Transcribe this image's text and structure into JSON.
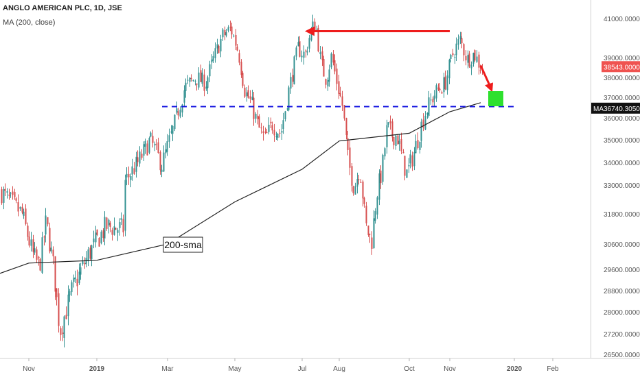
{
  "header": {
    "title": "ANGLO AMERICAN PLC, 1D, JSE",
    "indicator": "MA (200, close)"
  },
  "colors": {
    "up_candle": "#2f8f8f",
    "down_candle": "#d64b4b",
    "ma_line": "#222222",
    "support_line": "#1414e0",
    "arrow": "#ee1c1c",
    "target_box": "#2ee02e",
    "last_price_bg": "#ef5350",
    "ma_tag_bg": "#111111",
    "axis_text": "#555555"
  },
  "chart_data": {
    "type": "candlestick",
    "title": "ANGLO AMERICAN PLC, 1D, JSE",
    "ylim": [
      26300,
      41500
    ],
    "price_axis_ticks": [
      "41000.0000",
      "39000.0000",
      "38000.0000",
      "37000.0000",
      "36000.0000",
      "35000.0000",
      "34000.0000",
      "33000.0000",
      "31800.0000",
      "30600.0000",
      "29600.0000",
      "28800.0000",
      "28000.0000",
      "27200.0000",
      "26500.0000"
    ],
    "time_axis_labels": [
      "Nov",
      "2019",
      "Mar",
      "May",
      "Jul",
      "Aug",
      "Oct",
      "Nov",
      "2020",
      "Feb"
    ],
    "last_price": {
      "label": "38543.0000",
      "value": 38543
    },
    "ma_value": {
      "prefix": "MA",
      "label": "36740.3050",
      "value": 36740.3
    },
    "series": [
      {
        "name": "Price",
        "type": "candle",
        "close_path": [
          [
            "Oct",
            32700
          ],
          [
            "Oct",
            31800
          ],
          [
            "Nov",
            30200
          ],
          [
            "Nov",
            29700
          ],
          [
            "Nov",
            31500
          ],
          [
            "Nov",
            29800
          ],
          [
            "Nov",
            27300
          ],
          [
            "Dec",
            28800
          ],
          [
            "Dec",
            30200
          ],
          [
            "2019",
            31300
          ],
          [
            "2019",
            31200
          ],
          [
            "Jan",
            32500
          ],
          [
            "Feb",
            34000
          ],
          [
            "Feb",
            35000
          ],
          [
            "Feb",
            33900
          ],
          [
            "Mar",
            35500
          ],
          [
            "Mar",
            37500
          ],
          [
            "Mar",
            38000
          ],
          [
            "Apr",
            37700
          ],
          [
            "Apr",
            39000
          ],
          [
            "Apr",
            40100
          ],
          [
            "Apr",
            40500
          ],
          [
            "May",
            39300
          ],
          [
            "May",
            37300
          ],
          [
            "May",
            36700
          ],
          [
            "May",
            35600
          ],
          [
            "May",
            35000
          ],
          [
            "Jun",
            35700
          ],
          [
            "Jun",
            35300
          ],
          [
            "Jun",
            37500
          ],
          [
            "Jun",
            39500
          ],
          [
            "Jul",
            39100
          ],
          [
            "Jul",
            40300
          ],
          [
            "Jul",
            40800
          ],
          [
            "Jul",
            38700
          ],
          [
            "Jul",
            37900
          ],
          [
            "Jul",
            39100
          ],
          [
            "Jul",
            37800
          ],
          [
            "Aug",
            36600
          ],
          [
            "Aug",
            34000
          ],
          [
            "Aug",
            32900
          ],
          [
            "Aug",
            33800
          ],
          [
            "Aug",
            31300
          ],
          [
            "Aug",
            30700
          ],
          [
            "Sep",
            32700
          ],
          [
            "Sep",
            33600
          ],
          [
            "Sep",
            35600
          ],
          [
            "Sep",
            35200
          ],
          [
            "Sep",
            35200
          ],
          [
            "Sep",
            34200
          ],
          [
            "Sep",
            33500
          ],
          [
            "Oct",
            34500
          ],
          [
            "Oct",
            36200
          ],
          [
            "Oct",
            37200
          ],
          [
            "Oct",
            37700
          ],
          [
            "Nov",
            39300
          ],
          [
            "Nov",
            39900
          ],
          [
            "Nov",
            38900
          ],
          [
            "Nov",
            39200
          ],
          [
            "Nov",
            38500
          ]
        ]
      },
      {
        "name": "MA (200, close)",
        "type": "line",
        "path": [
          [
            "Oct",
            29450
          ],
          [
            "Nov",
            29850
          ],
          [
            "2019",
            29960
          ],
          [
            "Mar",
            30600
          ],
          [
            "May",
            32300
          ],
          [
            "Jul",
            33700
          ],
          [
            "Aug",
            34950
          ],
          [
            "Oct",
            35300
          ],
          [
            "Nov",
            36300
          ],
          [
            "Nov",
            36740
          ]
        ]
      }
    ],
    "annotations": [
      {
        "type": "horizontal_line",
        "style": "dashed",
        "value": 36550
      },
      {
        "type": "arrow",
        "from": [
          "Nov",
          40350
        ],
        "to": [
          "Jul",
          40350
        ]
      },
      {
        "type": "arrow",
        "from": [
          "Nov",
          38600
        ],
        "to": [
          "Dec",
          37400
        ]
      },
      {
        "type": "box",
        "at": [
          "Dec",
          37000
        ]
      },
      {
        "type": "label",
        "text": "200-sma"
      }
    ],
    "grid": false,
    "legend": "top-left"
  }
}
